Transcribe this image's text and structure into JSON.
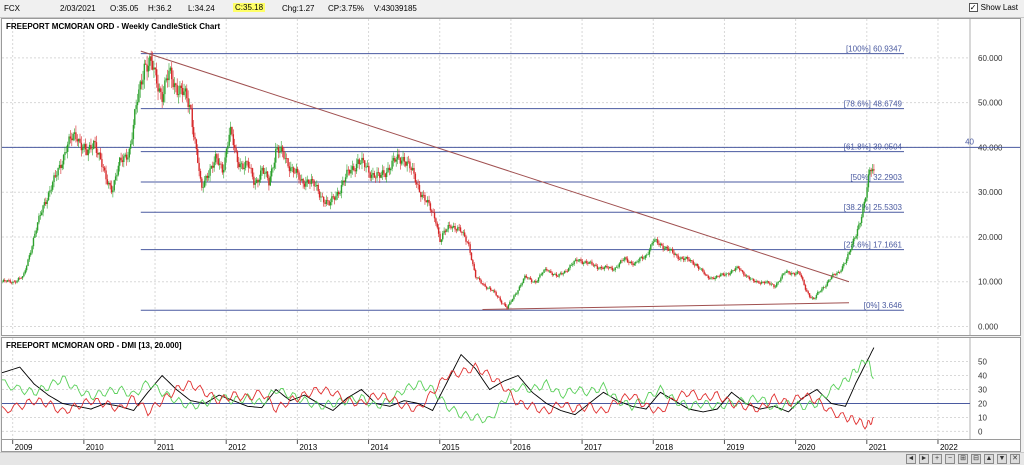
{
  "toolbar": {
    "symbol": "FCX",
    "date": "2/03/2021",
    "open": "O:35.05",
    "high": "H:36.2",
    "low": "L:34.24",
    "close": "C:35.18",
    "change": "Chg:1.27",
    "change_pct": "CP:3.75%",
    "volume": "V:43039185",
    "show_last_label": "Show Last",
    "show_last_checked": "✓"
  },
  "nav": {
    "buttons": [
      "◄",
      "►",
      "+",
      "−",
      "⊞",
      "⊟",
      "▲",
      "▼",
      "✕"
    ]
  },
  "colors": {
    "up": "#2ca02c",
    "down": "#d62728",
    "fib": "#4a5aa0",
    "trendline": "#a05050",
    "dmi_adx": "#000000",
    "dmi_plus": "#5ad05a",
    "dmi_minus": "#e03030",
    "dmi_ref": "#4a5aa0"
  },
  "chart_data": [
    {
      "type": "candlestick",
      "title": "FREEPORT MCMORAN ORD - Weekly CandleStick Chart",
      "x_tick_labels": [
        "2009",
        "2010",
        "2011",
        "2012",
        "2013",
        "2014",
        "2015",
        "2016",
        "2017",
        "2018",
        "2019",
        "2020",
        "2021",
        "2022"
      ],
      "x_range": [
        2008.85,
        2022.45
      ],
      "ylim": [
        -1,
        66
      ],
      "y_tick_labels": [
        "0.000",
        "10.000",
        "20.000",
        "30.000",
        "40.000",
        "50.000",
        "60.000"
      ],
      "y_ticks": [
        0,
        10,
        20,
        30,
        40,
        50,
        60
      ],
      "grid": true,
      "fib_levels": [
        {
          "label": "[100%] 60.9347",
          "value": 60.9347
        },
        {
          "label": "[78.6%] 48.6749",
          "value": 48.6749
        },
        {
          "label": "[61.8%] 39.0504",
          "value": 39.0504
        },
        {
          "label": "[50%] 32.2903",
          "value": 32.2903
        },
        {
          "label": "[38.2%] 25.5303",
          "value": 25.5303
        },
        {
          "label": "[23.6%] 17.1661",
          "value": 17.1661
        },
        {
          "label": "[0%] 3.646",
          "value": 3.646
        }
      ],
      "fib_x_start": 2010.8,
      "horizontal_line": {
        "label": "40",
        "value": 40
      },
      "trendlines": [
        {
          "from": [
            2010.8,
            61.5
          ],
          "to": [
            2020.75,
            10
          ]
        },
        {
          "from": [
            2015.6,
            3.8
          ],
          "to": [
            2020.75,
            5.3
          ]
        }
      ],
      "price_path": [
        [
          2008.85,
          10
        ],
        [
          2009.0,
          10
        ],
        [
          2009.15,
          11
        ],
        [
          2009.3,
          20
        ],
        [
          2009.45,
          28
        ],
        [
          2009.6,
          33
        ],
        [
          2009.75,
          40
        ],
        [
          2009.9,
          43
        ],
        [
          2010.05,
          38
        ],
        [
          2010.15,
          42
        ],
        [
          2010.3,
          33
        ],
        [
          2010.4,
          31
        ],
        [
          2010.5,
          36
        ],
        [
          2010.65,
          40
        ],
        [
          2010.75,
          50
        ],
        [
          2010.85,
          59
        ],
        [
          2010.95,
          58
        ],
        [
          2011.1,
          52
        ],
        [
          2011.2,
          56
        ],
        [
          2011.35,
          53
        ],
        [
          2011.5,
          49
        ],
        [
          2011.6,
          37
        ],
        [
          2011.65,
          30
        ],
        [
          2011.75,
          35
        ],
        [
          2011.85,
          37
        ],
        [
          2011.95,
          35
        ],
        [
          2012.05,
          44
        ],
        [
          2012.15,
          37
        ],
        [
          2012.3,
          36
        ],
        [
          2012.4,
          32
        ],
        [
          2012.5,
          35
        ],
        [
          2012.6,
          32
        ],
        [
          2012.7,
          40
        ],
        [
          2012.8,
          38
        ],
        [
          2012.95,
          35
        ],
        [
          2013.05,
          32
        ],
        [
          2013.15,
          33
        ],
        [
          2013.3,
          30
        ],
        [
          2013.45,
          27
        ],
        [
          2013.6,
          31
        ],
        [
          2013.75,
          35
        ],
        [
          2013.85,
          37
        ],
        [
          2014.0,
          35
        ],
        [
          2014.15,
          33
        ],
        [
          2014.3,
          36
        ],
        [
          2014.5,
          38
        ],
        [
          2014.65,
          33
        ],
        [
          2014.8,
          28
        ],
        [
          2014.95,
          24
        ],
        [
          2015.0,
          19
        ],
        [
          2015.15,
          23
        ],
        [
          2015.3,
          21
        ],
        [
          2015.4,
          19
        ],
        [
          2015.5,
          11
        ],
        [
          2015.65,
          9
        ],
        [
          2015.8,
          7
        ],
        [
          2015.95,
          4
        ],
        [
          2016.05,
          7
        ],
        [
          2016.2,
          11
        ],
        [
          2016.35,
          10
        ],
        [
          2016.5,
          13
        ],
        [
          2016.65,
          11
        ],
        [
          2016.8,
          13
        ],
        [
          2016.95,
          15
        ],
        [
          2017.1,
          14
        ],
        [
          2017.3,
          13
        ],
        [
          2017.45,
          13
        ],
        [
          2017.6,
          15
        ],
        [
          2017.75,
          14
        ],
        [
          2017.9,
          16
        ],
        [
          2018.0,
          19
        ],
        [
          2018.15,
          18
        ],
        [
          2018.3,
          16
        ],
        [
          2018.45,
          15
        ],
        [
          2018.6,
          14
        ],
        [
          2018.75,
          11
        ],
        [
          2018.9,
          11
        ],
        [
          2019.05,
          12
        ],
        [
          2019.2,
          13
        ],
        [
          2019.4,
          10
        ],
        [
          2019.55,
          10
        ],
        [
          2019.7,
          9
        ],
        [
          2019.85,
          12
        ],
        [
          2019.95,
          12
        ],
        [
          2020.05,
          12
        ],
        [
          2020.15,
          8
        ],
        [
          2020.25,
          6
        ],
        [
          2020.35,
          8
        ],
        [
          2020.5,
          11
        ],
        [
          2020.6,
          12
        ],
        [
          2020.75,
          16
        ],
        [
          2020.85,
          21
        ],
        [
          2020.95,
          26
        ],
        [
          2021.0,
          30
        ],
        [
          2021.05,
          36
        ],
        [
          2021.1,
          35
        ]
      ]
    },
    {
      "type": "line",
      "title": "FREEPORT MCMORAN ORD - DMI [13, 20.000]",
      "ylim": [
        -4,
        64
      ],
      "y_tick_labels": [
        "0",
        "10",
        "20",
        "30",
        "40",
        "50"
      ],
      "y_ticks": [
        0,
        10,
        20,
        30,
        40,
        50
      ],
      "reference_line": 20,
      "series": [
        {
          "key": "adx",
          "x": [
            2008.85,
            2009.1,
            2009.3,
            2009.5,
            2009.7,
            2009.9,
            2010.1,
            2010.3,
            2010.5,
            2010.7,
            2010.9,
            2011.1,
            2011.3,
            2011.5,
            2011.7,
            2011.9,
            2012.1,
            2012.3,
            2012.5,
            2012.7,
            2012.9,
            2013.1,
            2013.3,
            2013.5,
            2013.7,
            2013.9,
            2014.1,
            2014.3,
            2014.5,
            2014.7,
            2014.9,
            2015.1,
            2015.3,
            2015.5,
            2015.7,
            2015.9,
            2016.1,
            2016.3,
            2016.5,
            2016.7,
            2016.9,
            2017.1,
            2017.3,
            2017.5,
            2017.7,
            2017.9,
            2018.1,
            2018.3,
            2018.5,
            2018.7,
            2018.9,
            2019.1,
            2019.3,
            2019.5,
            2019.7,
            2019.9,
            2020.1,
            2020.3,
            2020.5,
            2020.7,
            2020.85,
            2021.0,
            2021.1
          ],
          "values": [
            42,
            46,
            34,
            26,
            20,
            18,
            16,
            20,
            18,
            15,
            28,
            40,
            30,
            22,
            20,
            26,
            22,
            18,
            17,
            30,
            22,
            26,
            20,
            15,
            24,
            30,
            20,
            18,
            22,
            20,
            15,
            35,
            55,
            45,
            30,
            36,
            40,
            28,
            20,
            15,
            12,
            20,
            28,
            22,
            18,
            16,
            28,
            22,
            16,
            14,
            16,
            28,
            20,
            16,
            18,
            14,
            24,
            30,
            20,
            18,
            35,
            50,
            60
          ]
        },
        {
          "key": "plus_di",
          "x": [
            2008.85,
            2009.1,
            2009.3,
            2009.5,
            2009.7,
            2009.9,
            2010.1,
            2010.3,
            2010.5,
            2010.7,
            2010.9,
            2011.1,
            2011.3,
            2011.5,
            2011.7,
            2011.9,
            2012.1,
            2012.3,
            2012.5,
            2012.7,
            2012.9,
            2013.1,
            2013.3,
            2013.5,
            2013.7,
            2013.9,
            2014.1,
            2014.3,
            2014.5,
            2014.7,
            2014.9,
            2015.1,
            2015.3,
            2015.5,
            2015.7,
            2015.9,
            2016.1,
            2016.3,
            2016.5,
            2016.7,
            2016.9,
            2017.1,
            2017.3,
            2017.5,
            2017.7,
            2017.9,
            2018.1,
            2018.3,
            2018.5,
            2018.7,
            2018.9,
            2019.1,
            2019.3,
            2019.5,
            2019.7,
            2019.9,
            2020.1,
            2020.3,
            2020.5,
            2020.7,
            2020.85,
            2021.0,
            2021.1
          ],
          "values": [
            35,
            30,
            28,
            32,
            38,
            30,
            25,
            28,
            30,
            26,
            35,
            28,
            22,
            18,
            20,
            25,
            22,
            24,
            20,
            30,
            26,
            22,
            18,
            20,
            22,
            24,
            18,
            22,
            30,
            34,
            30,
            18,
            12,
            10,
            8,
            22,
            32,
            30,
            34,
            26,
            30,
            28,
            32,
            22,
            18,
            24,
            30,
            22,
            18,
            20,
            18,
            20,
            22,
            24,
            16,
            20,
            18,
            20,
            30,
            36,
            44,
            52,
            38
          ]
        },
        {
          "key": "minus_di",
          "x": [
            2008.85,
            2009.1,
            2009.3,
            2009.5,
            2009.7,
            2009.9,
            2010.1,
            2010.3,
            2010.5,
            2010.7,
            2010.9,
            2011.1,
            2011.3,
            2011.5,
            2011.7,
            2011.9,
            2012.1,
            2012.3,
            2012.5,
            2012.7,
            2012.9,
            2013.1,
            2013.3,
            2013.5,
            2013.7,
            2013.9,
            2014.1,
            2014.3,
            2014.5,
            2014.7,
            2014.9,
            2015.1,
            2015.3,
            2015.5,
            2015.7,
            2015.9,
            2016.1,
            2016.3,
            2016.5,
            2016.7,
            2016.9,
            2017.1,
            2017.3,
            2017.5,
            2017.7,
            2017.9,
            2018.1,
            2018.3,
            2018.5,
            2018.7,
            2018.9,
            2019.1,
            2019.3,
            2019.5,
            2019.7,
            2019.9,
            2020.1,
            2020.3,
            2020.5,
            2020.7,
            2020.85,
            2021.0,
            2021.1
          ],
          "values": [
            15,
            18,
            22,
            20,
            14,
            18,
            22,
            20,
            16,
            24,
            14,
            22,
            30,
            34,
            28,
            22,
            26,
            24,
            28,
            16,
            22,
            26,
            30,
            28,
            22,
            20,
            26,
            24,
            18,
            16,
            28,
            40,
            42,
            46,
            40,
            32,
            20,
            18,
            14,
            20,
            16,
            18,
            14,
            22,
            26,
            18,
            14,
            24,
            28,
            24,
            26,
            20,
            18,
            16,
            24,
            20,
            26,
            22,
            14,
            10,
            8,
            4,
            10
          ]
        }
      ]
    }
  ]
}
